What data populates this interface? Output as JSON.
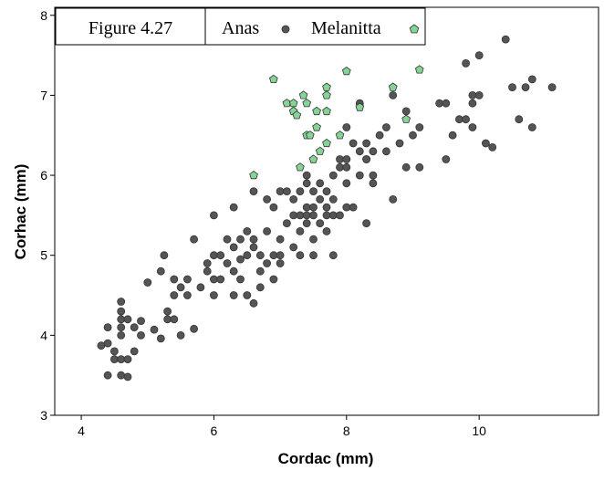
{
  "chart_data": {
    "type": "scatter",
    "title": "",
    "xlabel": "Cordac (mm)",
    "ylabel": "Corhac (mm)",
    "xlim": [
      3.6,
      11.8
    ],
    "ylim": [
      3.0,
      8.1
    ],
    "xticks": [
      4,
      6,
      8,
      10
    ],
    "yticks": [
      3,
      4,
      5,
      6,
      7,
      8
    ],
    "grid": false,
    "legend": {
      "placement": "top-left",
      "figure_label": "Figure 4.27",
      "entries": [
        "Anas",
        "Melanitta"
      ]
    },
    "series": [
      {
        "name": "Anas",
        "marker": "circle",
        "color": "#555555",
        "points": [
          [
            4.3,
            3.87
          ],
          [
            4.4,
            3.9
          ],
          [
            4.4,
            4.1
          ],
          [
            4.5,
            3.7
          ],
          [
            4.4,
            3.5
          ],
          [
            4.5,
            3.8
          ],
          [
            4.6,
            3.7
          ],
          [
            4.6,
            4.0
          ],
          [
            4.6,
            4.1
          ],
          [
            4.6,
            4.2
          ],
          [
            4.6,
            4.3
          ],
          [
            4.6,
            4.42
          ],
          [
            4.6,
            3.5
          ],
          [
            4.7,
            3.48
          ],
          [
            4.7,
            3.7
          ],
          [
            4.7,
            4.2
          ],
          [
            4.8,
            3.8
          ],
          [
            4.8,
            4.1
          ],
          [
            4.9,
            4.18
          ],
          [
            4.9,
            4.0
          ],
          [
            5.0,
            4.66
          ],
          [
            5.1,
            4.07
          ],
          [
            5.2,
            4.8
          ],
          [
            5.2,
            3.96
          ],
          [
            5.25,
            5.0
          ],
          [
            5.3,
            4.2
          ],
          [
            5.3,
            4.3
          ],
          [
            5.4,
            4.5
          ],
          [
            5.4,
            4.7
          ],
          [
            5.4,
            4.2
          ],
          [
            5.5,
            4.0
          ],
          [
            5.5,
            4.6
          ],
          [
            5.6,
            4.7
          ],
          [
            5.6,
            4.5
          ],
          [
            5.7,
            5.2
          ],
          [
            5.7,
            4.08
          ],
          [
            5.8,
            4.6
          ],
          [
            5.9,
            4.9
          ],
          [
            5.9,
            4.8
          ],
          [
            6.0,
            4.5
          ],
          [
            6.0,
            5.0
          ],
          [
            6.0,
            4.7
          ],
          [
            6.0,
            5.5
          ],
          [
            6.1,
            5.0
          ],
          [
            6.1,
            4.7
          ],
          [
            6.2,
            5.2
          ],
          [
            6.2,
            4.9
          ],
          [
            6.3,
            5.1
          ],
          [
            6.3,
            4.5
          ],
          [
            6.3,
            4.8
          ],
          [
            6.3,
            5.6
          ],
          [
            6.4,
            5.2
          ],
          [
            6.4,
            4.7
          ],
          [
            6.4,
            4.95
          ],
          [
            6.5,
            5.3
          ],
          [
            6.5,
            5.0
          ],
          [
            6.5,
            4.5
          ],
          [
            6.6,
            5.2
          ],
          [
            6.6,
            5.8
          ],
          [
            6.6,
            4.4
          ],
          [
            6.6,
            5.1
          ],
          [
            6.7,
            4.8
          ],
          [
            6.7,
            4.6
          ],
          [
            6.7,
            5.0
          ],
          [
            6.8,
            5.3
          ],
          [
            6.8,
            4.9
          ],
          [
            6.8,
            5.7
          ],
          [
            6.9,
            4.7
          ],
          [
            6.9,
            5.0
          ],
          [
            6.9,
            5.6
          ],
          [
            7.0,
            5.2
          ],
          [
            7.0,
            4.9
          ],
          [
            7.0,
            5.8
          ],
          [
            7.0,
            5.0
          ],
          [
            7.1,
            5.4
          ],
          [
            7.1,
            5.8
          ],
          [
            7.2,
            5.5
          ],
          [
            7.2,
            5.1
          ],
          [
            7.2,
            5.7
          ],
          [
            7.3,
            5.8
          ],
          [
            7.3,
            5.3
          ],
          [
            7.3,
            5.5
          ],
          [
            7.3,
            5.0
          ],
          [
            7.4,
            5.6
          ],
          [
            7.4,
            5.9
          ],
          [
            7.4,
            6.0
          ],
          [
            7.4,
            5.4
          ],
          [
            7.4,
            5.5
          ],
          [
            7.5,
            5.2
          ],
          [
            7.5,
            5.6
          ],
          [
            7.5,
            5.8
          ],
          [
            7.5,
            5.5
          ],
          [
            7.5,
            5.0
          ],
          [
            7.6,
            5.7
          ],
          [
            7.6,
            5.4
          ],
          [
            7.6,
            5.9
          ],
          [
            7.7,
            5.3
          ],
          [
            7.7,
            5.6
          ],
          [
            7.7,
            5.8
          ],
          [
            7.7,
            5.5
          ],
          [
            7.8,
            5.7
          ],
          [
            7.8,
            5.0
          ],
          [
            7.8,
            5.5
          ],
          [
            7.8,
            6.0
          ],
          [
            7.9,
            5.5
          ],
          [
            7.9,
            6.2
          ],
          [
            7.9,
            6.1
          ],
          [
            8.0,
            5.6
          ],
          [
            8.0,
            6.2
          ],
          [
            8.0,
            6.1
          ],
          [
            8.0,
            5.9
          ],
          [
            8.0,
            6.6
          ],
          [
            8.1,
            6.4
          ],
          [
            8.1,
            5.6
          ],
          [
            8.2,
            6.9
          ],
          [
            8.2,
            6.3
          ],
          [
            8.2,
            6.0
          ],
          [
            8.3,
            6.2
          ],
          [
            8.3,
            6.4
          ],
          [
            8.3,
            5.4
          ],
          [
            8.3,
            6.2
          ],
          [
            8.4,
            6.3
          ],
          [
            8.4,
            6.0
          ],
          [
            8.4,
            5.9
          ],
          [
            8.5,
            6.5
          ],
          [
            8.6,
            6.3
          ],
          [
            8.6,
            6.6
          ],
          [
            8.7,
            5.7
          ],
          [
            8.7,
            7.0
          ],
          [
            8.8,
            6.4
          ],
          [
            8.9,
            6.1
          ],
          [
            8.9,
            6.8
          ],
          [
            9.0,
            6.5
          ],
          [
            9.1,
            6.1
          ],
          [
            9.1,
            6.6
          ],
          [
            9.4,
            6.9
          ],
          [
            9.5,
            6.9
          ],
          [
            9.5,
            6.2
          ],
          [
            9.6,
            6.5
          ],
          [
            9.7,
            6.7
          ],
          [
            9.8,
            7.4
          ],
          [
            9.8,
            6.7
          ],
          [
            9.9,
            7.0
          ],
          [
            9.9,
            6.9
          ],
          [
            9.9,
            6.6
          ],
          [
            10.0,
            7.0
          ],
          [
            10.0,
            7.5
          ],
          [
            10.1,
            6.4
          ],
          [
            10.2,
            6.35
          ],
          [
            10.4,
            7.7
          ],
          [
            10.5,
            7.1
          ],
          [
            10.6,
            6.7
          ],
          [
            10.7,
            7.1
          ],
          [
            10.8,
            7.2
          ],
          [
            10.8,
            6.6
          ],
          [
            11.1,
            7.1
          ]
        ]
      },
      {
        "name": "Melanitta",
        "marker": "pentagon",
        "color": "#86d396",
        "points": [
          [
            6.6,
            6.0
          ],
          [
            6.9,
            7.2
          ],
          [
            7.1,
            6.9
          ],
          [
            7.2,
            6.9
          ],
          [
            7.2,
            6.8
          ],
          [
            7.25,
            6.75
          ],
          [
            7.3,
            6.1
          ],
          [
            7.35,
            7.0
          ],
          [
            7.4,
            6.9
          ],
          [
            7.4,
            6.5
          ],
          [
            7.45,
            6.5
          ],
          [
            7.5,
            6.2
          ],
          [
            7.55,
            6.8
          ],
          [
            7.55,
            6.6
          ],
          [
            7.6,
            6.3
          ],
          [
            7.7,
            6.8
          ],
          [
            7.7,
            6.4
          ],
          [
            7.7,
            7.1
          ],
          [
            7.7,
            7.0
          ],
          [
            7.9,
            6.5
          ],
          [
            8.0,
            7.3
          ],
          [
            8.2,
            6.85
          ],
          [
            8.7,
            7.1
          ],
          [
            8.9,
            6.7
          ],
          [
            9.1,
            7.32
          ]
        ]
      }
    ]
  }
}
